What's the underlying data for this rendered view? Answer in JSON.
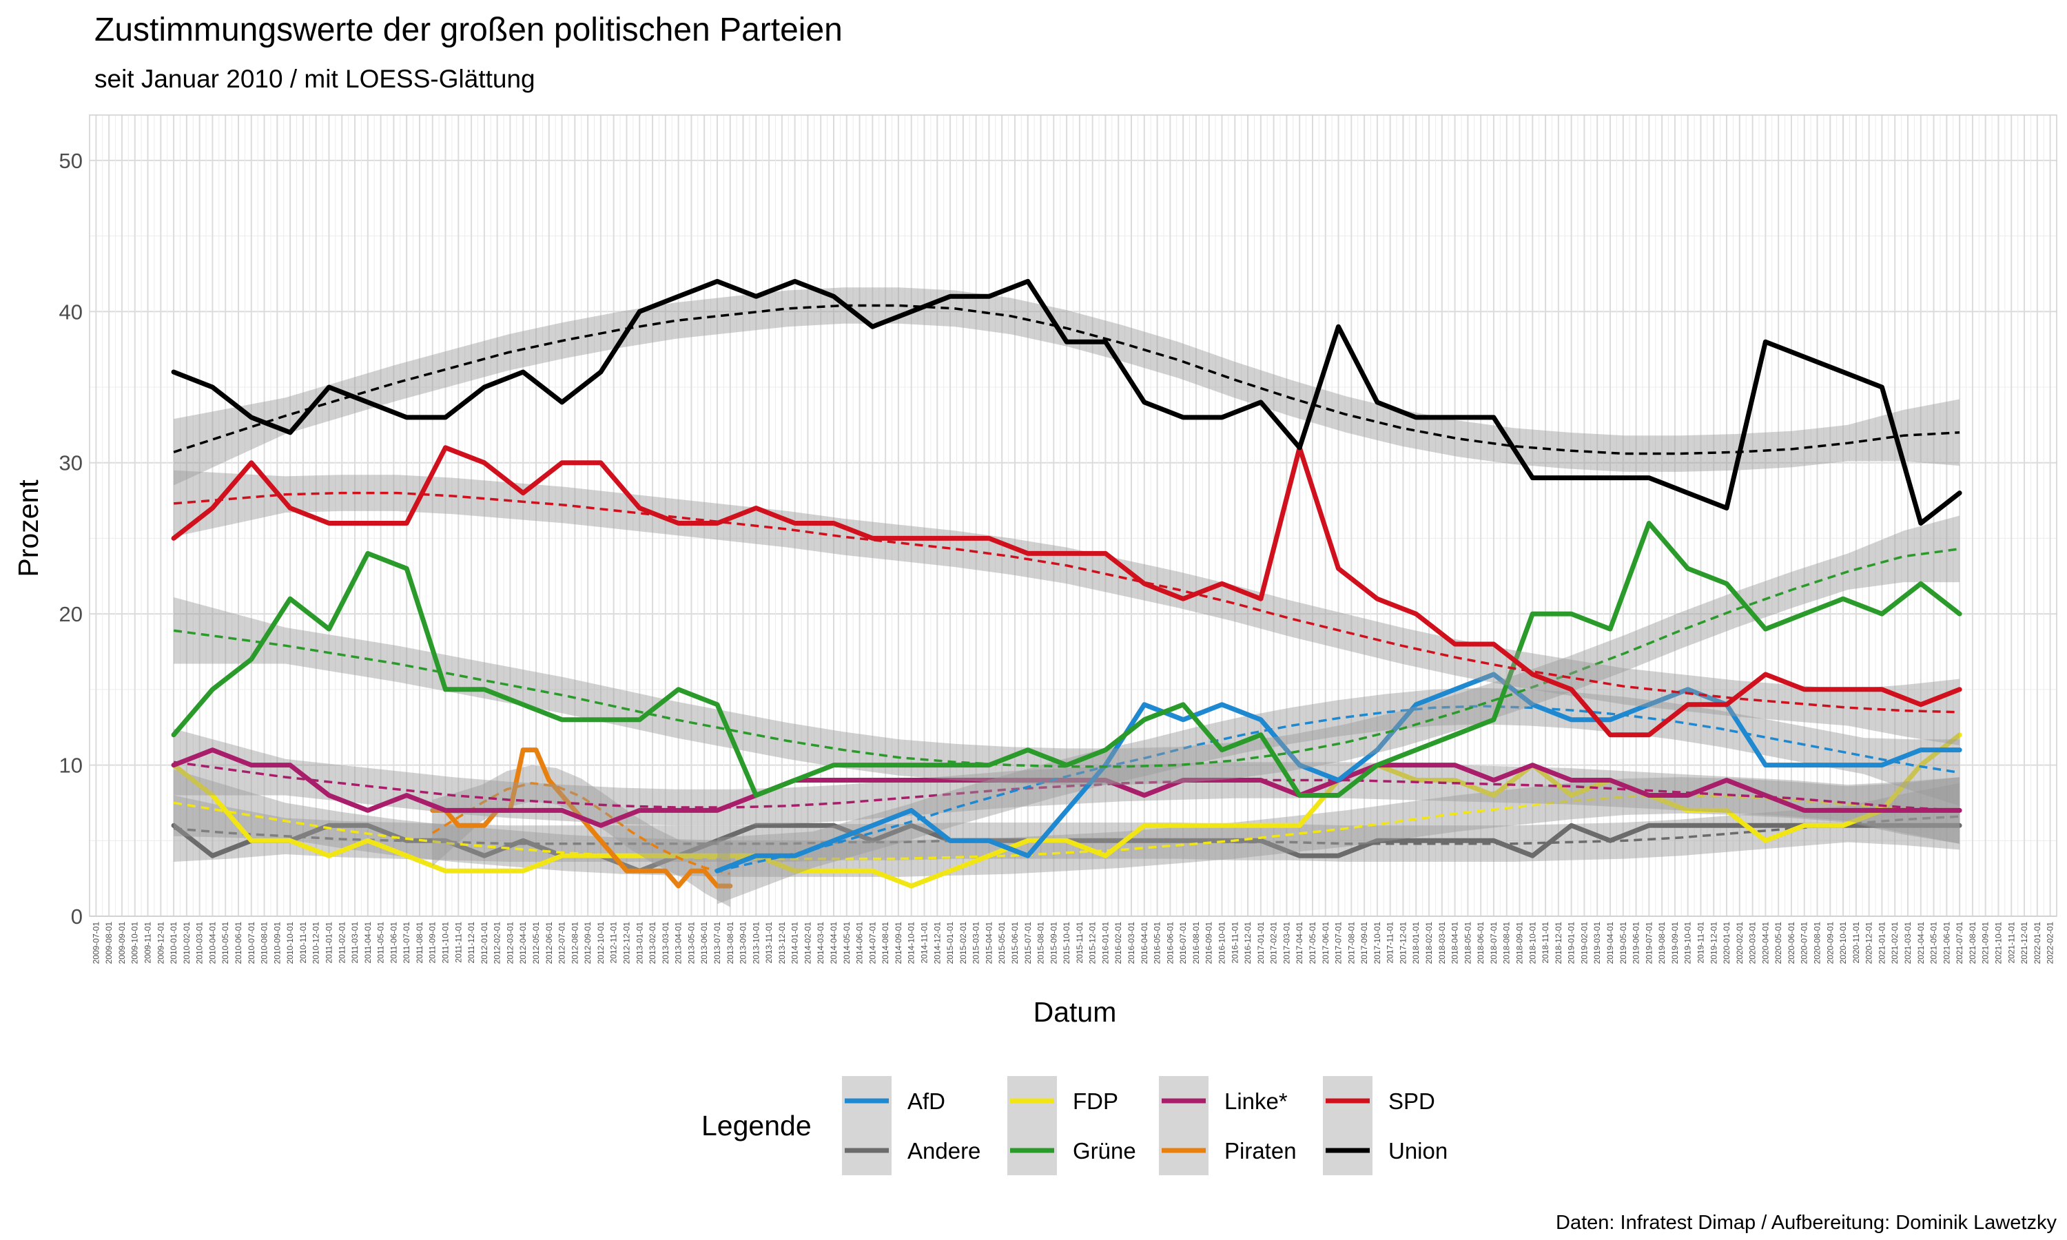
{
  "colors": {
    "AfD": "#1E88D0",
    "Andere": "#6B6B6B",
    "FDP": "#F2E514",
    "Grüne": "#2A9A2A",
    "Linke*": "#A91E6B",
    "Piraten": "#E8800F",
    "SPD": "#D0101C",
    "Union": "#000000"
  },
  "chart_data": {
    "type": "line",
    "title": "Zustimmungswerte der großen politischen Parteien",
    "subtitle": "seit Januar 2010 / mit LOESS-Glättung",
    "xlabel": "Datum",
    "ylabel": "Prozent",
    "ylim": [
      0,
      53
    ],
    "yticks": [
      0,
      10,
      20,
      30,
      40,
      50
    ],
    "xlim": [
      "2009-07-01",
      "2022-02-01"
    ],
    "x_tick_format": "monthly YYYY-MM-01, 2009-07-01 to 2022-02-01",
    "grid": true,
    "smoothing": "LOESS, dashed line with grey confidence band",
    "legend": {
      "title": "Legende",
      "position": "bottom",
      "items": [
        "AfD",
        "Andere",
        "FDP",
        "Grüne",
        "Linke*",
        "Piraten",
        "SPD",
        "Union"
      ]
    },
    "series": [
      {
        "name": "Union",
        "x": [
          "2010-01-01",
          "2010-04-01",
          "2010-07-01",
          "2010-10-01",
          "2011-01-01",
          "2011-04-01",
          "2011-07-01",
          "2011-10-01",
          "2012-01-01",
          "2012-04-01",
          "2012-07-01",
          "2012-10-01",
          "2013-01-01",
          "2013-04-01",
          "2013-07-01",
          "2013-10-01",
          "2014-01-01",
          "2014-04-01",
          "2014-07-01",
          "2014-10-01",
          "2015-01-01",
          "2015-04-01",
          "2015-07-01",
          "2015-10-01",
          "2016-01-01",
          "2016-04-01",
          "2016-07-01",
          "2016-10-01",
          "2017-01-01",
          "2017-04-01",
          "2017-07-01",
          "2017-10-01",
          "2018-01-01",
          "2018-04-01",
          "2018-07-01",
          "2018-10-01",
          "2019-01-01",
          "2019-04-01",
          "2019-07-01",
          "2019-10-01",
          "2020-01-01",
          "2020-04-01",
          "2020-07-01",
          "2020-10-01",
          "2021-01-01",
          "2021-04-01",
          "2021-07-01"
        ],
        "values": [
          36,
          35,
          33,
          32,
          35,
          34,
          33,
          33,
          35,
          36,
          34,
          36,
          40,
          41,
          42,
          41,
          42,
          41,
          39,
          40,
          41,
          41,
          42,
          38,
          38,
          34,
          33,
          33,
          34,
          31,
          39,
          34,
          33,
          33,
          33,
          29,
          29,
          29,
          29,
          28,
          27,
          38,
          37,
          36,
          35,
          26,
          28
        ],
        "smooth": [
          30.7,
          31.9,
          33.1,
          34.2,
          35.3,
          36.3,
          37.3,
          38.1,
          38.8,
          39.4,
          39.8,
          40.2,
          40.4,
          40.4,
          40.2,
          39.7,
          38.9,
          37.9,
          36.8,
          35.5,
          34.3,
          33.2,
          32.3,
          31.6,
          31.1,
          30.8,
          30.6,
          30.6,
          30.7,
          30.9,
          31.3,
          31.8,
          32.0
        ]
      },
      {
        "name": "SPD",
        "x": [
          "2010-01-01",
          "2010-04-01",
          "2010-07-01",
          "2010-10-01",
          "2011-01-01",
          "2011-04-01",
          "2011-07-01",
          "2011-10-01",
          "2012-01-01",
          "2012-04-01",
          "2012-07-01",
          "2012-10-01",
          "2013-01-01",
          "2013-04-01",
          "2013-07-01",
          "2013-10-01",
          "2014-01-01",
          "2014-04-01",
          "2014-07-01",
          "2014-10-01",
          "2015-01-01",
          "2015-04-01",
          "2015-07-01",
          "2015-10-01",
          "2016-01-01",
          "2016-04-01",
          "2016-07-01",
          "2016-10-01",
          "2017-01-01",
          "2017-04-01",
          "2017-07-01",
          "2017-10-01",
          "2018-01-01",
          "2018-04-01",
          "2018-07-01",
          "2018-10-01",
          "2019-01-01",
          "2019-04-01",
          "2019-07-01",
          "2019-10-01",
          "2020-01-01",
          "2020-04-01",
          "2020-07-01",
          "2020-10-01",
          "2021-01-01",
          "2021-04-01",
          "2021-07-01"
        ],
        "values": [
          25,
          27,
          30,
          27,
          26,
          26,
          26,
          31,
          30,
          28,
          30,
          30,
          27,
          26,
          26,
          27,
          26,
          26,
          25,
          25,
          25,
          25,
          24,
          24,
          24,
          22,
          21,
          22,
          21,
          31,
          23,
          21,
          20,
          18,
          18,
          16,
          15,
          12,
          12,
          14,
          14,
          16,
          15,
          15,
          15,
          14,
          15
        ],
        "smooth": [
          27.3,
          27.6,
          27.9,
          28.0,
          28.0,
          27.8,
          27.5,
          27.2,
          26.8,
          26.4,
          26.0,
          25.6,
          25.1,
          24.7,
          24.3,
          23.8,
          23.2,
          22.4,
          21.6,
          20.7,
          19.7,
          18.8,
          17.9,
          17.1,
          16.4,
          15.8,
          15.2,
          14.8,
          14.4,
          14.1,
          13.8,
          13.6,
          13.5
        ]
      },
      {
        "name": "Grüne",
        "x": [
          "2010-01-01",
          "2010-04-01",
          "2010-07-01",
          "2010-10-01",
          "2011-01-01",
          "2011-04-01",
          "2011-07-01",
          "2011-10-01",
          "2012-01-01",
          "2012-04-01",
          "2012-07-01",
          "2012-10-01",
          "2013-01-01",
          "2013-04-01",
          "2013-07-01",
          "2013-10-01",
          "2014-01-01",
          "2014-04-01",
          "2014-07-01",
          "2014-10-01",
          "2015-01-01",
          "2015-04-01",
          "2015-07-01",
          "2015-10-01",
          "2016-01-01",
          "2016-04-01",
          "2016-07-01",
          "2016-10-01",
          "2017-01-01",
          "2017-04-01",
          "2017-07-01",
          "2017-10-01",
          "2018-01-01",
          "2018-04-01",
          "2018-07-01",
          "2018-10-01",
          "2019-01-01",
          "2019-04-01",
          "2019-07-01",
          "2019-10-01",
          "2020-01-01",
          "2020-04-01",
          "2020-07-01",
          "2020-10-01",
          "2021-01-01",
          "2021-04-01",
          "2021-07-01"
        ],
        "values": [
          12,
          15,
          17,
          21,
          19,
          24,
          23,
          15,
          15,
          14,
          13,
          13,
          13,
          15,
          14,
          8,
          9,
          10,
          10,
          10,
          10,
          10,
          11,
          10,
          11,
          13,
          14,
          11,
          12,
          8,
          8,
          10,
          11,
          12,
          13,
          20,
          20,
          19,
          26,
          23,
          22,
          19,
          20,
          21,
          20,
          22,
          20
        ],
        "smooth": [
          18.9,
          18.4,
          17.9,
          17.3,
          16.7,
          16.0,
          15.3,
          14.6,
          13.8,
          13.0,
          12.3,
          11.6,
          11.0,
          10.5,
          10.2,
          10.0,
          9.9,
          9.9,
          10.0,
          10.3,
          10.8,
          11.5,
          12.4,
          13.5,
          14.7,
          16.0,
          17.4,
          18.9,
          20.3,
          21.6,
          22.8,
          23.8,
          24.3
        ]
      },
      {
        "name": "AfD",
        "x": [
          "2013-07-01",
          "2013-10-01",
          "2014-01-01",
          "2014-04-01",
          "2014-07-01",
          "2014-10-01",
          "2015-01-01",
          "2015-04-01",
          "2015-07-01",
          "2015-10-01",
          "2016-01-01",
          "2016-04-01",
          "2016-07-01",
          "2016-10-01",
          "2017-01-01",
          "2017-04-01",
          "2017-07-01",
          "2017-10-01",
          "2018-01-01",
          "2018-04-01",
          "2018-07-01",
          "2018-10-01",
          "2019-01-01",
          "2019-04-01",
          "2019-07-01",
          "2019-10-01",
          "2020-01-01",
          "2020-04-01",
          "2020-07-01",
          "2020-10-01",
          "2021-01-01",
          "2021-04-01",
          "2021-07-01"
        ],
        "values": [
          3,
          4,
          4,
          5,
          6,
          7,
          5,
          5,
          4,
          7,
          10,
          14,
          13,
          14,
          13,
          10,
          9,
          11,
          14,
          15,
          16,
          14,
          13,
          13,
          14,
          15,
          14,
          10,
          10,
          10,
          10,
          11,
          11
        ],
        "smooth": [
          3.0,
          3.7,
          4.4,
          5.3,
          6.2,
          7.2,
          8.1,
          9.0,
          9.8,
          10.5,
          11.3,
          12.0,
          12.6,
          13.1,
          13.5,
          13.8,
          13.9,
          13.8,
          13.6,
          13.3,
          12.9,
          12.4,
          11.8,
          11.2,
          10.6,
          10.0,
          9.5
        ]
      },
      {
        "name": "FDP",
        "x": [
          "2010-01-01",
          "2010-04-01",
          "2010-07-01",
          "2010-10-01",
          "2011-01-01",
          "2011-04-01",
          "2011-07-01",
          "2011-10-01",
          "2012-01-01",
          "2012-04-01",
          "2012-07-01",
          "2012-10-01",
          "2013-01-01",
          "2013-04-01",
          "2013-07-01",
          "2013-10-01",
          "2014-01-01",
          "2014-04-01",
          "2014-07-01",
          "2014-10-01",
          "2015-01-01",
          "2015-04-01",
          "2015-07-01",
          "2015-10-01",
          "2016-01-01",
          "2016-04-01",
          "2016-07-01",
          "2016-10-01",
          "2017-01-01",
          "2017-04-01",
          "2017-07-01",
          "2017-10-01",
          "2018-01-01",
          "2018-04-01",
          "2018-07-01",
          "2018-10-01",
          "2019-01-01",
          "2019-04-01",
          "2019-07-01",
          "2019-10-01",
          "2020-01-01",
          "2020-04-01",
          "2020-07-01",
          "2020-10-01",
          "2021-01-01",
          "2021-04-01",
          "2021-07-01"
        ],
        "values": [
          10,
          8,
          5,
          5,
          4,
          5,
          4,
          3,
          3,
          3,
          4,
          4,
          4,
          4,
          4,
          4,
          3,
          3,
          3,
          2,
          3,
          4,
          5,
          5,
          4,
          6,
          6,
          6,
          6,
          6,
          9,
          10,
          9,
          9,
          8,
          10,
          8,
          9,
          8,
          7,
          7,
          5,
          6,
          6,
          7,
          10,
          12
        ],
        "smooth": [
          7.5,
          6.9,
          6.3,
          5.7,
          5.2,
          4.8,
          4.5,
          4.2,
          4.0,
          3.9,
          3.8,
          3.8,
          3.8,
          3.8,
          3.9,
          4.0,
          4.2,
          4.4,
          4.7,
          5.0,
          5.4,
          5.8,
          6.3,
          6.8,
          7.2,
          7.6,
          7.9,
          8.0,
          7.9,
          7.7,
          7.4,
          7.1,
          7.0
        ]
      },
      {
        "name": "Linke*",
        "x": [
          "2010-01-01",
          "2010-04-01",
          "2010-07-01",
          "2010-10-01",
          "2011-01-01",
          "2011-04-01",
          "2011-07-01",
          "2011-10-01",
          "2012-01-01",
          "2012-04-01",
          "2012-07-01",
          "2012-10-01",
          "2013-01-01",
          "2013-04-01",
          "2013-07-01",
          "2013-10-01",
          "2014-01-01",
          "2014-04-01",
          "2014-07-01",
          "2014-10-01",
          "2015-01-01",
          "2015-04-01",
          "2015-07-01",
          "2015-10-01",
          "2016-01-01",
          "2016-04-01",
          "2016-07-01",
          "2016-10-01",
          "2017-01-01",
          "2017-04-01",
          "2017-07-01",
          "2017-10-01",
          "2018-01-01",
          "2018-04-01",
          "2018-07-01",
          "2018-10-01",
          "2019-01-01",
          "2019-04-01",
          "2019-07-01",
          "2019-10-01",
          "2020-01-01",
          "2020-04-01",
          "2020-07-01",
          "2020-10-01",
          "2021-01-01",
          "2021-04-01",
          "2021-07-01"
        ],
        "values": [
          10,
          11,
          10,
          10,
          8,
          7,
          8,
          7,
          7,
          7,
          7,
          6,
          7,
          7,
          7,
          8,
          9,
          9,
          9,
          9,
          9,
          9,
          9,
          9,
          9,
          8,
          9,
          9,
          9,
          8,
          9,
          10,
          10,
          10,
          9,
          10,
          9,
          9,
          8,
          8,
          9,
          8,
          7,
          7,
          7,
          7,
          7
        ],
        "smooth": [
          10.2,
          9.7,
          9.2,
          8.8,
          8.4,
          8.0,
          7.7,
          7.5,
          7.3,
          7.2,
          7.2,
          7.3,
          7.5,
          7.8,
          8.1,
          8.4,
          8.6,
          8.8,
          8.9,
          9.0,
          9.0,
          9.0,
          8.9,
          8.8,
          8.7,
          8.6,
          8.4,
          8.2,
          8.0,
          7.8,
          7.5,
          7.2,
          7.0
        ]
      },
      {
        "name": "Piraten",
        "x": [
          "2011-09-01",
          "2011-10-01",
          "2011-11-01",
          "2011-12-01",
          "2012-01-01",
          "2012-02-01",
          "2012-03-01",
          "2012-04-01",
          "2012-05-01",
          "2012-06-01",
          "2012-07-01",
          "2012-08-01",
          "2012-09-01",
          "2012-10-01",
          "2012-11-01",
          "2012-12-01",
          "2013-01-01",
          "2013-02-01",
          "2013-03-01",
          "2013-04-01",
          "2013-05-01",
          "2013-06-01",
          "2013-07-01",
          "2013-08-01"
        ],
        "values": [
          7,
          7,
          6,
          6,
          6,
          7,
          7,
          11,
          11,
          9,
          8,
          7,
          6,
          5,
          4,
          3,
          3,
          3,
          3,
          2,
          3,
          3,
          2,
          2
        ],
        "smooth": [
          5.5,
          6.5,
          7.5,
          8.4,
          8.8,
          8.6,
          7.9,
          6.8,
          5.6,
          4.6,
          3.8,
          3.2,
          2.8
        ]
      },
      {
        "name": "Andere",
        "x": [
          "2010-01-01",
          "2010-04-01",
          "2010-07-01",
          "2010-10-01",
          "2011-01-01",
          "2011-04-01",
          "2011-07-01",
          "2011-10-01",
          "2012-01-01",
          "2012-04-01",
          "2012-07-01",
          "2012-10-01",
          "2013-01-01",
          "2013-04-01",
          "2013-07-01",
          "2013-10-01",
          "2014-01-01",
          "2014-04-01",
          "2014-07-01",
          "2014-10-01",
          "2015-01-01",
          "2015-04-01",
          "2015-07-01",
          "2015-10-01",
          "2016-01-01",
          "2016-04-01",
          "2016-07-01",
          "2016-10-01",
          "2017-01-01",
          "2017-04-01",
          "2017-07-01",
          "2017-10-01",
          "2018-01-01",
          "2018-04-01",
          "2018-07-01",
          "2018-10-01",
          "2019-01-01",
          "2019-04-01",
          "2019-07-01",
          "2019-10-01",
          "2020-01-01",
          "2020-04-01",
          "2020-07-01",
          "2020-10-01",
          "2021-01-01",
          "2021-04-01",
          "2021-07-01"
        ],
        "values": [
          6,
          4,
          5,
          5,
          6,
          6,
          5,
          5,
          4,
          5,
          4,
          4,
          3,
          4,
          5,
          6,
          6,
          6,
          5,
          6,
          5,
          5,
          5,
          5,
          5,
          5,
          5,
          5,
          5,
          4,
          4,
          5,
          5,
          5,
          5,
          4,
          6,
          5,
          6,
          6,
          6,
          6,
          6,
          6,
          6,
          6,
          6
        ],
        "smooth": [
          5.8,
          5.5,
          5.3,
          5.1,
          5.0,
          4.9,
          4.8,
          4.8,
          4.8,
          4.8,
          4.8,
          4.8,
          4.9,
          4.9,
          5.0,
          5.0,
          5.0,
          5.0,
          5.0,
          4.9,
          4.9,
          4.8,
          4.8,
          4.8,
          4.8,
          4.9,
          5.0,
          5.2,
          5.5,
          5.8,
          6.1,
          6.4,
          6.6
        ]
      }
    ]
  },
  "caption": "Daten: Infratest Dimap / Aufbereitung: Dominik Lawetzky"
}
